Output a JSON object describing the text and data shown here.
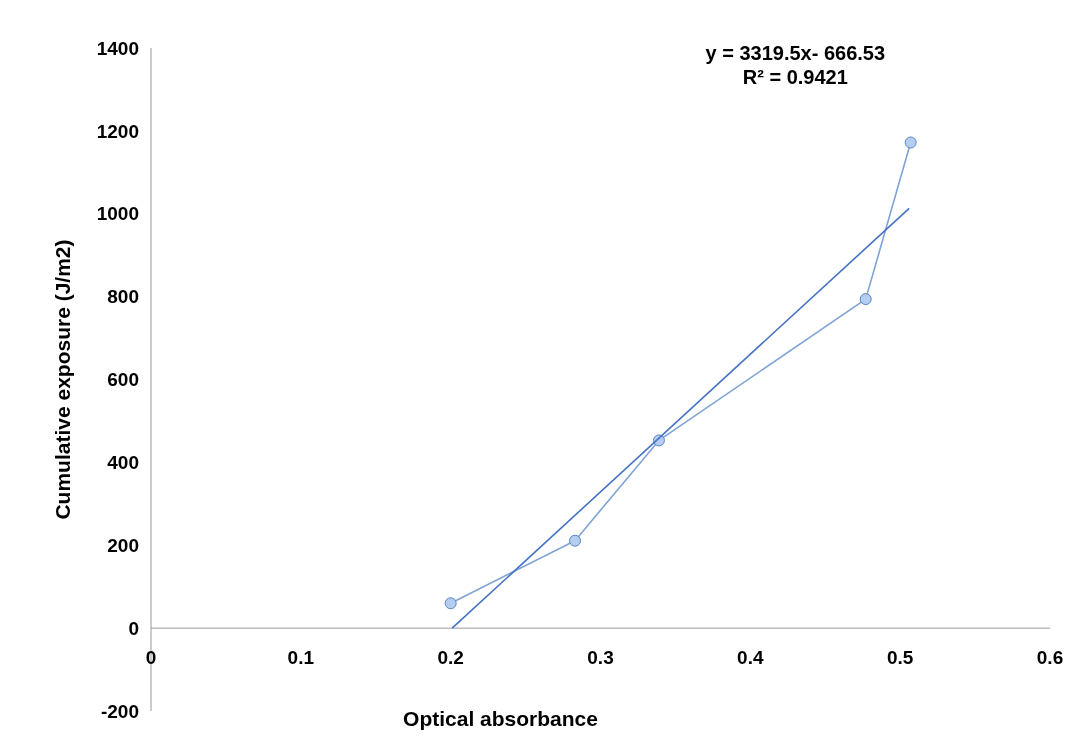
{
  "chart_data": {
    "type": "line",
    "xlabel": "Optical absorbance",
    "ylabel": "Cumulative exposure (J/m2)",
    "xlim": [
      0,
      0.6
    ],
    "xticks": [
      0,
      0.1,
      0.2,
      0.3,
      0.4,
      0.5,
      0.6
    ],
    "ylim": [
      -200,
      1400
    ],
    "yticks": [
      -200,
      0,
      200,
      400,
      600,
      800,
      1000,
      1200,
      1400
    ],
    "grid": false,
    "series": [
      {
        "color": "#7fa3d6",
        "marker": "circle",
        "x": [
          0.2,
          0.283,
          0.339,
          0.477,
          0.507
        ],
        "values": [
          60,
          211,
          453,
          794,
          1172
        ]
      },
      {
        "color": "#4472c4",
        "marker": "none",
        "x": [
          0.201,
          0.506
        ],
        "values": [
          0,
          1013
        ]
      }
    ],
    "annotations": [
      "y = 3319.5x- 666.53",
      "R² = 0.9421"
    ]
  }
}
